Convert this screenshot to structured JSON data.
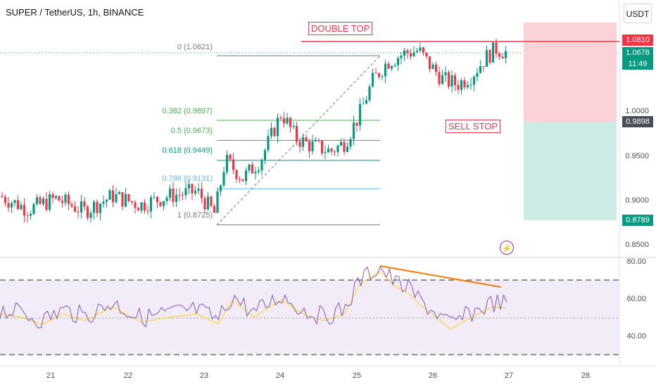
{
  "header": {
    "title": "SUPER / TetherUS, 1h, BINANCE",
    "currency_button": "USDT"
  },
  "price_axis": {
    "ticks": [
      "1.0000",
      "0.9500",
      "0.9000",
      "0.8500"
    ],
    "tags": {
      "top": "1.0810",
      "last": "1.0678",
      "countdown": "11:49",
      "stop": "0.9898",
      "target": "0.8789"
    }
  },
  "fib_levels": [
    {
      "label": "0 (1.0621)",
      "value": 1.0621,
      "color": "#787b86"
    },
    {
      "label": "0.382 (0.9897)",
      "value": 0.9897,
      "color": "#4caf50"
    },
    {
      "label": "0.5 (0.9673)",
      "value": 0.9673,
      "color": "#4caf50"
    },
    {
      "label": "0.618 (0.9449)",
      "value": 0.9449,
      "color": "#089981"
    },
    {
      "label": "0.786 (0.9131)",
      "value": 0.9131,
      "color": "#64b5f6"
    },
    {
      "label": "1 (0.8725)",
      "value": 0.8725,
      "color": "#787b86"
    }
  ],
  "annotations": {
    "double_top": "DOUBLE TOP",
    "sell_stop": "SELL STOP"
  },
  "rsi_axis": {
    "ticks": [
      "80.00",
      "60.00",
      "40.00"
    ]
  },
  "time_axis": {
    "labels": [
      "21",
      "22",
      "23",
      "24",
      "25",
      "26",
      "27",
      "28"
    ]
  },
  "colors": {
    "up": "#089981",
    "down": "#f23645",
    "stop_zone": "#fbd3d6",
    "target_zone": "#cdece6",
    "rsi_line": "#7e57c2",
    "rsi_ma": "#fdd835",
    "rsi_band": "#ede7f6",
    "trend": "#f57c00",
    "double_top_line": "#e5394d"
  },
  "icons": {
    "alert": "lightning-alert-icon"
  }
}
